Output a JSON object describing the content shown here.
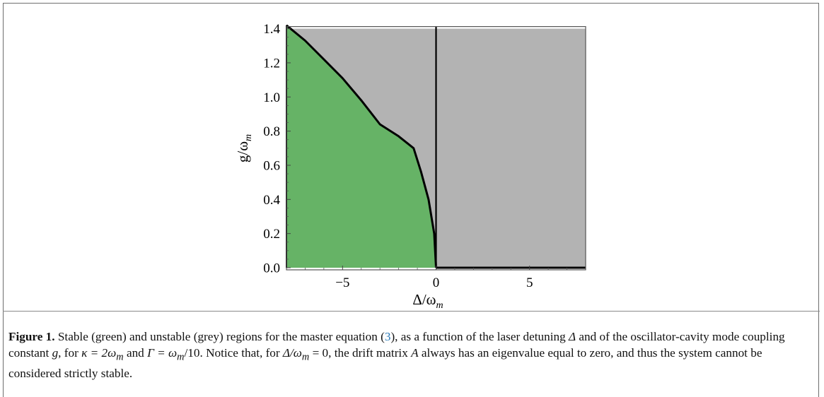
{
  "chart_data": {
    "type": "area",
    "xlabel": "Δ/ω",
    "xlabel_sub": "m",
    "ylabel": "g/ω",
    "ylabel_sub": "m",
    "xlim": [
      -8,
      8
    ],
    "ylim": [
      0,
      1.4
    ],
    "x_ticks": [
      -5,
      0,
      5
    ],
    "x_tick_labels": [
      "−5",
      "0",
      "5"
    ],
    "y_ticks": [
      0.0,
      0.2,
      0.4,
      0.6,
      0.8,
      1.0,
      1.2,
      1.4
    ],
    "y_tick_labels": [
      "0.0",
      "0.2",
      "0.4",
      "0.6",
      "0.8",
      "1.0",
      "1.2",
      "1.4"
    ],
    "colors": {
      "stable": "#66b366",
      "unstable": "#b3b3b3",
      "boundary": "#000000"
    },
    "regions": [
      {
        "name": "stable (green)",
        "color": "#66b366"
      },
      {
        "name": "unstable (grey)",
        "color": "#b3b3b3"
      }
    ],
    "stability_boundary": {
      "x": [
        -8.0,
        -7.0,
        -6.0,
        -5.0,
        -4.0,
        -3.0,
        -2.0,
        -1.2,
        -0.8,
        -0.4,
        -0.1,
        0.0
      ],
      "y": [
        1.42,
        1.33,
        1.22,
        1.11,
        0.98,
        0.84,
        0.77,
        0.7,
        0.56,
        0.4,
        0.2,
        0.0
      ]
    },
    "vertical_line_x": 0,
    "horizontal_boundary": {
      "y": 0,
      "x_from": 0,
      "x_to": 8
    }
  },
  "caption": {
    "label": "Figure 1.",
    "parts": [
      " Stable (green) and unstable (grey) regions for the master equation (",
      "3",
      "), as a function of the laser detuning ",
      "Δ",
      " and of the oscillator-cavity mode coupling constant ",
      "g",
      ", for ",
      "κ = 2ω",
      "m",
      " and ",
      "Γ = ω",
      "m",
      "/10. Notice that, for ",
      "Δ/ω",
      "m",
      " = 0, the drift matrix ",
      "A",
      " always has an eigenvalue equal to zero, and thus the system cannot be considered strictly stable."
    ]
  }
}
